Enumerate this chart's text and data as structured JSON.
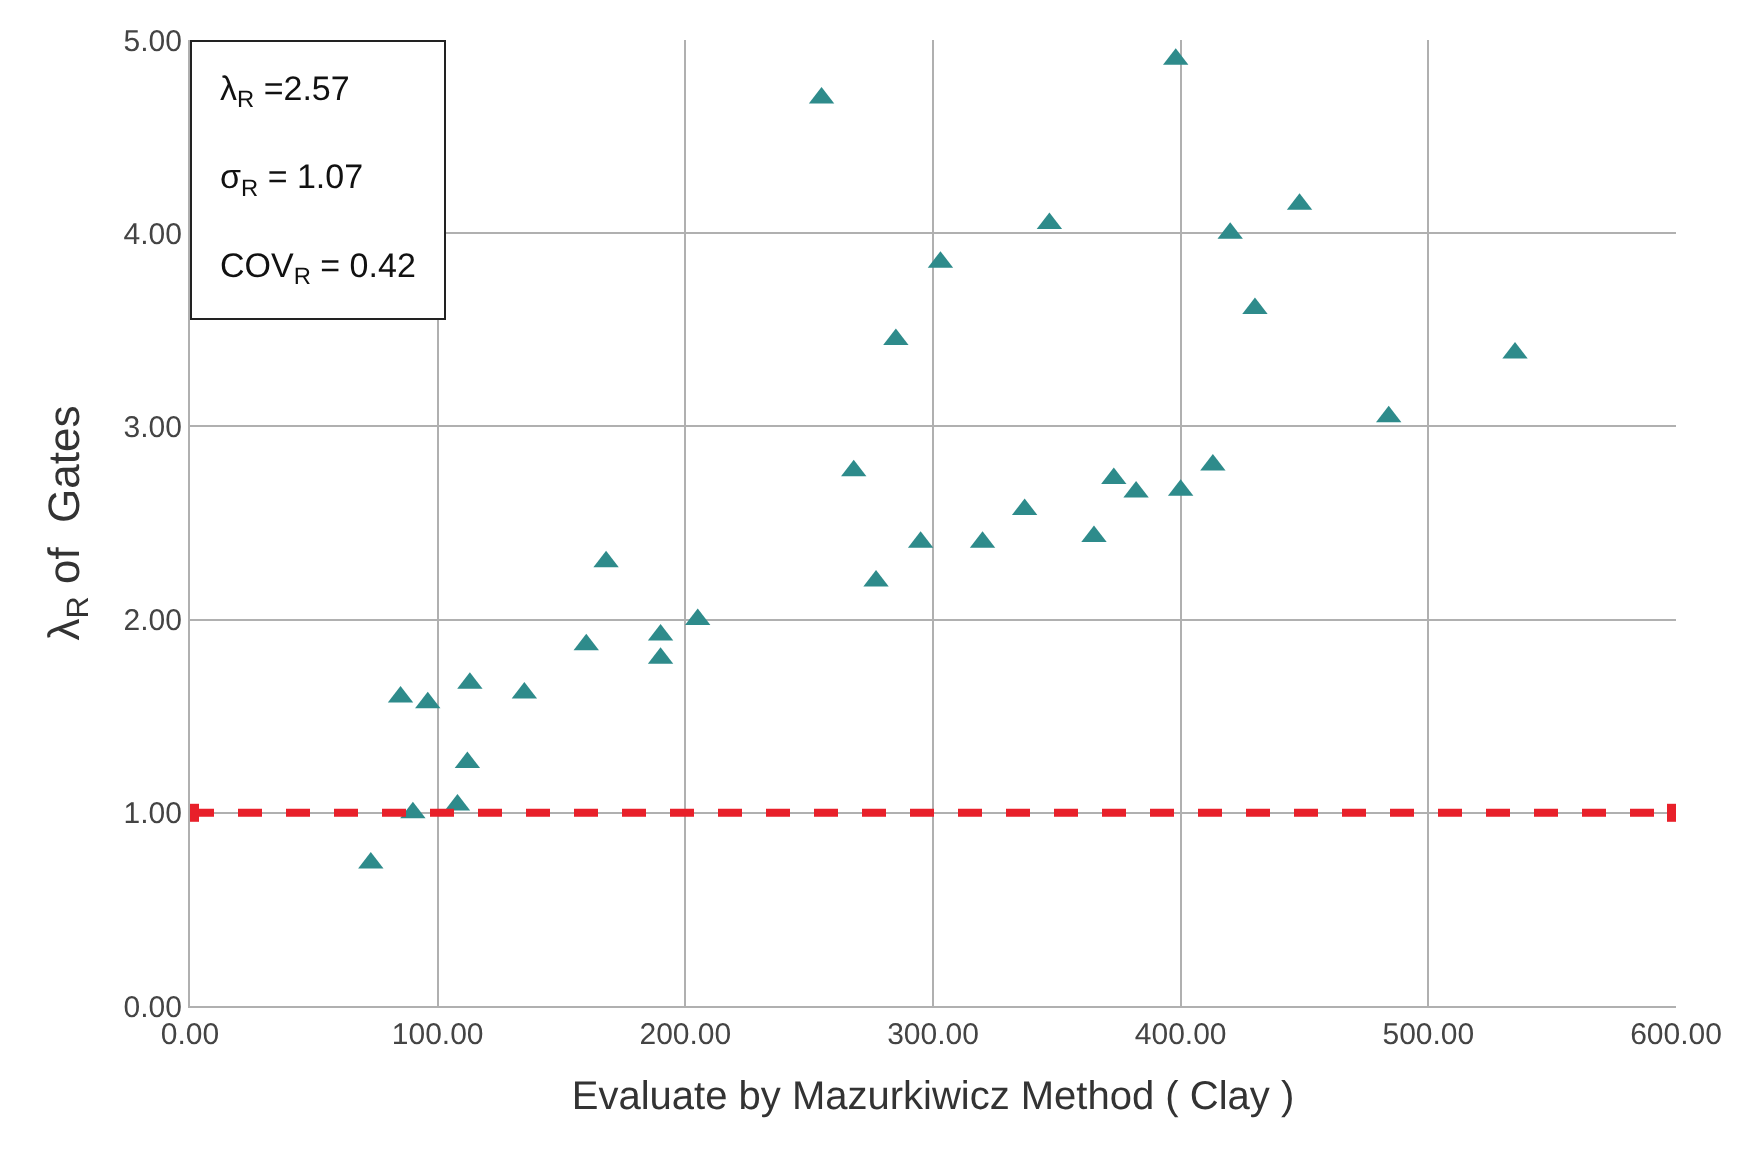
{
  "chart_data": {
    "type": "scatter",
    "xlabel": "Evaluate by Mazurkiwicz Method ( Clay )",
    "ylabel": "λ$_{R}$ of  Gates",
    "annotations": [
      "λ$_{R}$ =2.57",
      "σ$_{R}$ = 1.07",
      "COV$_{R}$ = 0.42"
    ],
    "series": [
      {
        "marker": "triangle",
        "color": "#2e8b8b",
        "x": [
          73,
          85,
          90,
          96,
          108,
          112,
          113,
          135,
          160,
          168,
          190,
          190,
          205,
          255,
          268,
          277,
          285,
          295,
          303,
          320,
          337,
          347,
          365,
          373,
          382,
          398,
          400,
          413,
          420,
          430,
          448,
          484,
          535
        ],
        "values": [
          0.74,
          1.6,
          1.0,
          1.57,
          1.04,
          1.26,
          1.67,
          1.62,
          1.87,
          2.3,
          1.8,
          1.92,
          2.0,
          4.7,
          2.77,
          2.2,
          3.45,
          2.4,
          3.85,
          2.4,
          2.57,
          4.05,
          2.43,
          2.73,
          2.66,
          4.9,
          2.67,
          2.8,
          4.0,
          3.61,
          4.15,
          3.05,
          3.38
        ]
      },
      {
        "type": "line",
        "marker": "square",
        "line_style": "dashed",
        "color": "#e8202a",
        "x": [
          0,
          600
        ],
        "values": [
          1,
          1
        ]
      }
    ],
    "xlim": [
      0,
      600
    ],
    "xticks": [
      {
        "value": 0,
        "label": "0.00"
      },
      {
        "value": 100,
        "label": "100.00"
      },
      {
        "value": 200,
        "label": "200.00"
      },
      {
        "value": 300,
        "label": "300.00"
      },
      {
        "value": 400,
        "label": "400.00"
      },
      {
        "value": 500,
        "label": "500.00"
      },
      {
        "value": 600,
        "label": "600.00"
      }
    ],
    "ylim": [
      0,
      5
    ],
    "yticks": [
      {
        "value": 0,
        "label": "0.00"
      },
      {
        "value": 1,
        "label": "1.00"
      },
      {
        "value": 2,
        "label": "2.00"
      },
      {
        "value": 3,
        "label": "3.00"
      },
      {
        "value": 4,
        "label": "4.00"
      },
      {
        "value": 5,
        "label": "5.00"
      }
    ],
    "grid": true
  }
}
